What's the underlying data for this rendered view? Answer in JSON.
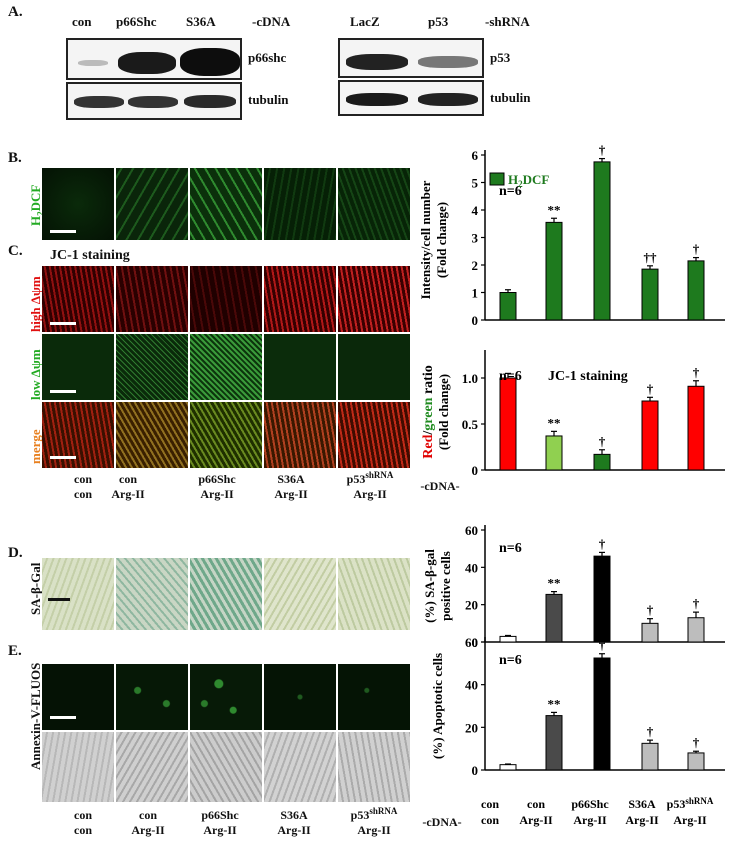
{
  "panel_labels": {
    "A": "A.",
    "B": "B.",
    "C": "C.",
    "D": "D.",
    "E": "E."
  },
  "panelA": {
    "left": {
      "lanes": [
        "con",
        "p66Shc",
        "S36A"
      ],
      "suffix": "-cDNA",
      "blots": [
        "p66shc",
        "tubulin"
      ]
    },
    "right": {
      "lanes": [
        "LacZ",
        "p53"
      ],
      "suffix": "-shRNA",
      "blots": [
        "p53",
        "tubulin"
      ]
    }
  },
  "image_labels": {
    "h2dcf": [
      "H",
      "2",
      "DCF"
    ],
    "jc1_title": "JC-1 staining",
    "high": "high Δψm",
    "low": "low Δψm",
    "merge": "merge",
    "sagal": "SA-β-Gal",
    "annexin": "Annexin-V-FLUOS"
  },
  "groups": {
    "row1": [
      "con",
      "con",
      "p66Shc",
      "S36A",
      "p53"
    ],
    "row1_sup": [
      "",
      "",
      "",
      "",
      "shRNA"
    ],
    "row2": [
      "con",
      "Arg-II",
      "Arg-II",
      "Arg-II",
      "Arg-II"
    ],
    "suffix": "-cDNA-"
  },
  "colors": {
    "h2dcf_green": "#1e7a1e",
    "jc1_red": "#ff0000",
    "jc1_lightgreen": "#90d050",
    "jc1_darkgreen": "#1e7a1e",
    "white_bar": "#ffffff",
    "darkgray": "#4a4a4a",
    "black": "#000000",
    "lightgray": "#bdbdbd"
  },
  "chart_data": [
    {
      "type": "bar",
      "ylabel": [
        "Intensity/cell number",
        "(Fold change)"
      ],
      "ylim": [
        0,
        6
      ],
      "yticks": [
        0,
        1,
        2,
        3,
        4,
        5,
        6
      ],
      "legend": [
        "H",
        "2",
        "DCF"
      ],
      "n_label": "n=6",
      "values": [
        1.0,
        3.55,
        5.75,
        1.85,
        2.15
      ],
      "errors": [
        0.1,
        0.15,
        0.12,
        0.12,
        0.12
      ],
      "annotations": [
        "",
        "**",
        "†",
        "††",
        "†"
      ],
      "colors": [
        "#1e7a1e",
        "#1e7a1e",
        "#1e7a1e",
        "#1e7a1e",
        "#1e7a1e"
      ]
    },
    {
      "type": "bar",
      "ylabel_parts": [
        "Red",
        "/",
        "green",
        " ratio"
      ],
      "ylabel2": "(Fold change)",
      "ylim": [
        0,
        1.25
      ],
      "yticks": [
        0,
        0.5,
        1.0
      ],
      "ytick_labels": [
        "0",
        "0.5",
        "1.0"
      ],
      "n_label": "n=6",
      "title": "JC-1 staining",
      "values": [
        1.0,
        0.37,
        0.17,
        0.75,
        0.91
      ],
      "errors": [
        0.05,
        0.05,
        0.05,
        0.04,
        0.06
      ],
      "annotations": [
        "",
        "**",
        "†",
        "†",
        "†"
      ],
      "colors": [
        "#ff0000",
        "#90d050",
        "#1e7a1e",
        "#ff0000",
        "#ff0000"
      ]
    },
    {
      "type": "bar",
      "ylabel": [
        "(%) SA-β-gal",
        "positive cells"
      ],
      "ylim": [
        0,
        60
      ],
      "yticks": [
        0,
        20,
        40,
        60
      ],
      "n_label": "n=6",
      "values": [
        3,
        25.5,
        46,
        10,
        13
      ],
      "errors": [
        0.5,
        1.5,
        2,
        2.5,
        3
      ],
      "annotations": [
        "",
        "**",
        "†",
        "†",
        "†"
      ],
      "colors": [
        "#ffffff",
        "#4a4a4a",
        "#000000",
        "#bdbdbd",
        "#bdbdbd"
      ]
    },
    {
      "type": "bar",
      "ylabel": [
        "(%) Apoptotic cells"
      ],
      "ylim": [
        0,
        60
      ],
      "yticks": [
        0,
        20,
        40,
        60
      ],
      "n_label": "n=6",
      "values": [
        2.5,
        25.5,
        52.5,
        12.5,
        8
      ],
      "errors": [
        0.3,
        1.5,
        2,
        1.5,
        0.8
      ],
      "annotations": [
        "",
        "**",
        "†",
        "†",
        "†"
      ],
      "colors": [
        "#ffffff",
        "#4a4a4a",
        "#000000",
        "#bdbdbd",
        "#bdbdbd"
      ],
      "categories_row1": [
        "con",
        "con",
        "p66Shc",
        "S36A",
        "p53"
      ],
      "categories_row1_sup": [
        "",
        "",
        "",
        "",
        "shRNA"
      ],
      "categories_row2": [
        "con",
        "Arg-II",
        "Arg-II",
        "Arg-II",
        "Arg-II"
      ]
    }
  ]
}
